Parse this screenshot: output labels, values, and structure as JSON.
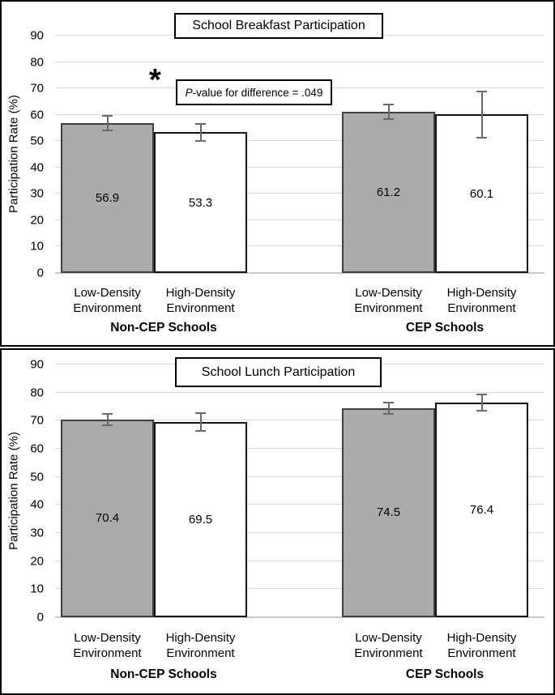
{
  "colors": {
    "panel_border": "#000000",
    "bar_fill_low_density": "#ababab",
    "bar_fill_high_density": "#ffffff",
    "bar_border": "#141414",
    "error_bar": "#6a6a6a",
    "gridline": "#d9d9d9",
    "axis_line": "#c9c9c9",
    "text": "#000000"
  },
  "chart_data": [
    {
      "type": "bar",
      "title": "School Breakfast Participation",
      "ylabel": "Participation Rate (%)",
      "ylim": [
        0,
        90
      ],
      "yticks": [
        0,
        10,
        20,
        30,
        40,
        50,
        60,
        70,
        80,
        90
      ],
      "grid": true,
      "legend": "none",
      "groups": [
        {
          "label": "Non-CEP Schools"
        },
        {
          "label": "CEP Schools"
        }
      ],
      "bars": [
        {
          "group": "Non-CEP Schools",
          "category": "Low-Density Environment",
          "cat_line1": "Low-Density",
          "cat_line2": "Environment",
          "value": 56.9,
          "label": "56.9",
          "err_plus": 3.0,
          "err_minus": 3.0,
          "fill": "gray"
        },
        {
          "group": "Non-CEP Schools",
          "category": "High-Density Environment",
          "cat_line1": "High-Density",
          "cat_line2": "Environment",
          "value": 53.3,
          "label": "53.3",
          "err_plus": 3.6,
          "err_minus": 3.6,
          "fill": "white"
        },
        {
          "group": "CEP Schools",
          "category": "Low-Density Environment",
          "cat_line1": "Low-Density",
          "cat_line2": "Environment",
          "value": 61.2,
          "label": "61.2",
          "err_plus": 3.0,
          "err_minus": 3.0,
          "fill": "gray"
        },
        {
          "group": "CEP Schools",
          "category": "High-Density Environment",
          "cat_line1": "High-Density",
          "cat_line2": "Environment",
          "value": 60.1,
          "label": "60.1",
          "err_plus": 9.0,
          "err_minus": 9.0,
          "fill": "white"
        }
      ],
      "annotation": {
        "marker": "*",
        "p": "P",
        "text": "-value for difference = .049"
      }
    },
    {
      "type": "bar",
      "title": "School Lunch Participation",
      "ylabel": "Participation Rate (%)",
      "ylim": [
        0,
        90
      ],
      "yticks": [
        0,
        10,
        20,
        30,
        40,
        50,
        60,
        70,
        80,
        90
      ],
      "grid": true,
      "legend": "none",
      "groups": [
        {
          "label": "Non-CEP Schools"
        },
        {
          "label": "CEP Schools"
        }
      ],
      "bars": [
        {
          "group": "Non-CEP Schools",
          "category": "Low-Density Environment",
          "cat_line1": "Low-Density",
          "cat_line2": "Environment",
          "value": 70.4,
          "label": "70.4",
          "err_plus": 2.3,
          "err_minus": 2.3,
          "fill": "gray"
        },
        {
          "group": "Non-CEP Schools",
          "category": "High-Density Environment",
          "cat_line1": "High-Density",
          "cat_line2": "Environment",
          "value": 69.5,
          "label": "69.5",
          "err_plus": 3.5,
          "err_minus": 3.5,
          "fill": "white"
        },
        {
          "group": "CEP Schools",
          "category": "Low-Density Environment",
          "cat_line1": "Low-Density",
          "cat_line2": "Environment",
          "value": 74.5,
          "label": "74.5",
          "err_plus": 2.3,
          "err_minus": 2.3,
          "fill": "gray"
        },
        {
          "group": "CEP Schools",
          "category": "High-Density Environment",
          "cat_line1": "High-Density",
          "cat_line2": "Environment",
          "value": 76.4,
          "label": "76.4",
          "err_plus": 3.2,
          "err_minus": 3.2,
          "fill": "white"
        }
      ]
    }
  ]
}
